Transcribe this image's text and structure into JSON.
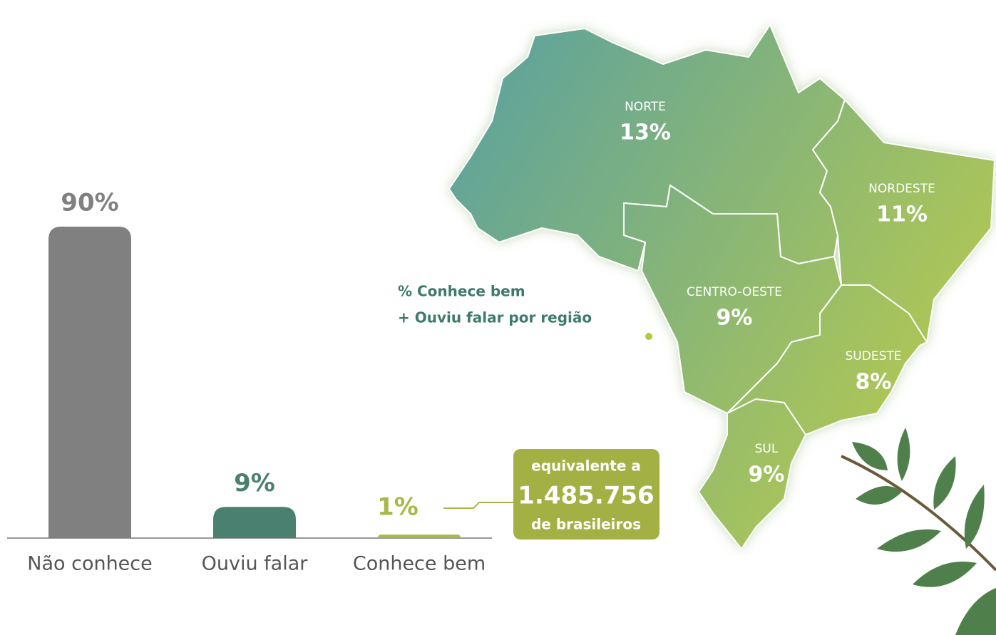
{
  "chart_data": [
    {
      "type": "bar",
      "categories": [
        "Não conhece",
        "Ouviu falar",
        "Conhece bem"
      ],
      "values": [
        90,
        9,
        1
      ],
      "value_labels": [
        "90%",
        "9%",
        "1%"
      ],
      "colors": [
        "#808080",
        "#4a8070",
        "#a9b84a"
      ]
    },
    {
      "type": "map",
      "title": [
        "% Conhece bem",
        "+ Ouviu falar por região"
      ],
      "regions": [
        {
          "name": "NORTE",
          "value": 13,
          "value_label": "13%"
        },
        {
          "name": "NORDESTE",
          "value": 11,
          "value_label": "11%"
        },
        {
          "name": "CENTRO-OESTE",
          "value": 9,
          "value_label": "9%"
        },
        {
          "name": "SUDESTE",
          "value": 8,
          "value_label": "8%"
        },
        {
          "name": "SUL",
          "value": 9,
          "value_label": "9%"
        }
      ]
    }
  ],
  "callout": {
    "line1": "equivalente a",
    "number": "1.485.756",
    "line2": "de brasileiros"
  }
}
